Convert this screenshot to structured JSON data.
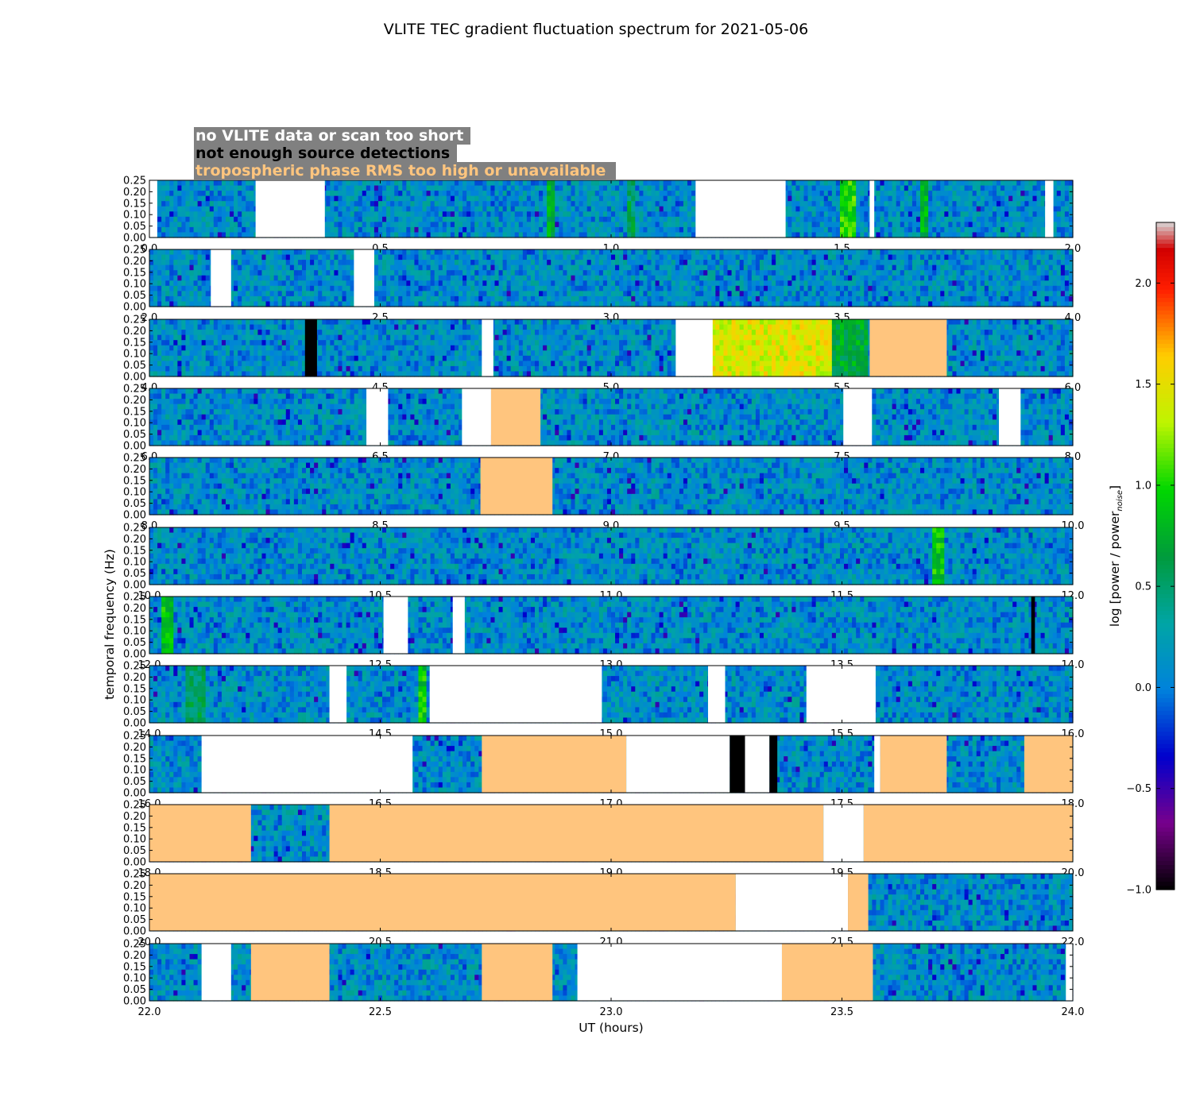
{
  "chart_data": {
    "type": "heatmap",
    "title": "VLITE TEC gradient fluctuation spectrum for 2021-05-06",
    "xlabel": "UT (hours)",
    "ylabel": "temporal frequency (Hz)",
    "ylim": [
      0,
      0.25
    ],
    "y_ticks": [
      "0.00",
      "0.05",
      "0.10",
      "0.15",
      "0.20",
      "0.25"
    ],
    "colorbar": {
      "label": "log [power / power",
      "label_sub": "noise",
      "label_end": "]",
      "range": [
        -1.0,
        2.3
      ],
      "ticks": [
        "−1.0",
        "−0.5",
        "0.0",
        "0.5",
        "1.0",
        "1.5",
        "2.0"
      ],
      "tick_values": [
        -1.0,
        -0.5,
        0.0,
        0.5,
        1.0,
        1.5,
        2.0
      ]
    },
    "legend": [
      {
        "text": "no VLITE data or scan too short",
        "color": "#ffffff",
        "fill": "#ffffff"
      },
      {
        "text": "not enough source detections",
        "color": "#000000",
        "fill": "#000000"
      },
      {
        "text": "tropospheric phase RMS too high or unavailable",
        "color": "#ffc57e",
        "fill": "#ffc57e"
      }
    ],
    "legend_bg": "#808080",
    "panels": [
      {
        "xlim": [
          0,
          2
        ],
        "xticks": [
          "0.0",
          "0.5",
          "1.0",
          "1.5",
          "2.0"
        ],
        "gaps": [
          {
            "t0": 0.0,
            "t1": 0.017,
            "kind": "nodata"
          },
          {
            "t0": 0.23,
            "t1": 0.38,
            "kind": "nodata"
          },
          {
            "t0": 1.183,
            "t1": 1.378,
            "kind": "nodata"
          },
          {
            "t0": 1.56,
            "t1": 1.57,
            "kind": "nodata"
          },
          {
            "t0": 1.94,
            "t1": 1.958,
            "kind": "nodata"
          }
        ],
        "hot": [
          {
            "t0": 0.86,
            "t1": 0.88,
            "level": 0.75
          },
          {
            "t0": 1.035,
            "t1": 1.05,
            "level": 0.55
          },
          {
            "t0": 1.5,
            "t1": 1.53,
            "level": 1.0
          },
          {
            "t0": 1.67,
            "t1": 1.69,
            "level": 0.8
          }
        ]
      },
      {
        "xlim": [
          2,
          4
        ],
        "xticks": [
          "2.0",
          "2.5",
          "3.0",
          "3.5",
          "4.0"
        ],
        "gaps": [
          {
            "t0": 2.133,
            "t1": 2.177,
            "kind": "nodata"
          },
          {
            "t0": 2.443,
            "t1": 2.487,
            "kind": "nodata"
          }
        ],
        "hot": []
      },
      {
        "xlim": [
          4,
          6
        ],
        "xticks": [
          "4.0",
          "4.5",
          "5.0",
          "5.5",
          "6.0"
        ],
        "gaps": [
          {
            "t0": 4.337,
            "t1": 4.363,
            "kind": "nodetect"
          },
          {
            "t0": 4.72,
            "t1": 4.745,
            "kind": "nodata"
          },
          {
            "t0": 5.14,
            "t1": 5.22,
            "kind": "nodata"
          },
          {
            "t0": 5.56,
            "t1": 5.727,
            "kind": "troposphere"
          }
        ],
        "hot": [
          {
            "t0": 5.22,
            "t1": 5.48,
            "level": 1.45
          },
          {
            "t0": 5.48,
            "t1": 5.56,
            "level": 0.7
          }
        ]
      },
      {
        "xlim": [
          6,
          8
        ],
        "xticks": [
          "6.0",
          "6.5",
          "7.0",
          "7.5",
          "8.0"
        ],
        "gaps": [
          {
            "t0": 6.47,
            "t1": 6.517,
            "kind": "nodata"
          },
          {
            "t0": 6.677,
            "t1": 6.74,
            "kind": "nodata"
          },
          {
            "t0": 6.74,
            "t1": 6.847,
            "kind": "troposphere"
          },
          {
            "t0": 7.503,
            "t1": 7.565,
            "kind": "nodata"
          },
          {
            "t0": 7.84,
            "t1": 7.887,
            "kind": "nodata"
          }
        ],
        "hot": []
      },
      {
        "xlim": [
          8,
          10
        ],
        "xticks": [
          "8.0",
          "8.5",
          "9.0",
          "9.5",
          "10.0"
        ],
        "gaps": [
          {
            "t0": 8.717,
            "t1": 8.873,
            "kind": "troposphere"
          }
        ],
        "hot": []
      },
      {
        "xlim": [
          10,
          12
        ],
        "xticks": [
          "10.0",
          "10.5",
          "11.0",
          "11.5",
          "12.0"
        ],
        "gaps": [],
        "hot": [
          {
            "t0": 11.7,
            "t1": 11.72,
            "level": 0.9
          }
        ]
      },
      {
        "xlim": [
          12,
          14
        ],
        "xticks": [
          "12.0",
          "12.5",
          "13.0",
          "13.5",
          "14.0"
        ],
        "gaps": [
          {
            "t0": 12.507,
            "t1": 12.56,
            "kind": "nodata"
          },
          {
            "t0": 12.657,
            "t1": 12.683,
            "kind": "nodata"
          },
          {
            "t0": 13.91,
            "t1": 13.918,
            "kind": "nodetect"
          }
        ],
        "hot": [
          {
            "t0": 12.03,
            "t1": 12.05,
            "level": 0.9
          }
        ]
      },
      {
        "xlim": [
          14,
          16
        ],
        "xticks": [
          "14.0",
          "14.5",
          "15.0",
          "15.5",
          "16.0"
        ],
        "gaps": [
          {
            "t0": 14.39,
            "t1": 14.427,
            "kind": "nodata"
          },
          {
            "t0": 14.607,
            "t1": 14.98,
            "kind": "nodata"
          },
          {
            "t0": 15.21,
            "t1": 15.247,
            "kind": "nodata"
          },
          {
            "t0": 15.423,
            "t1": 15.573,
            "kind": "nodata"
          }
        ],
        "hot": [
          {
            "t0": 14.08,
            "t1": 14.12,
            "level": 0.55
          },
          {
            "t0": 14.58,
            "t1": 14.6,
            "level": 0.9
          }
        ]
      },
      {
        "xlim": [
          16,
          18
        ],
        "xticks": [
          "16.0",
          "16.5",
          "17.0",
          "17.5",
          "18.0"
        ],
        "gaps": [
          {
            "t0": 16.113,
            "t1": 16.57,
            "kind": "nodata"
          },
          {
            "t0": 16.72,
            "t1": 17.033,
            "kind": "troposphere"
          },
          {
            "t0": 17.033,
            "t1": 17.257,
            "kind": "nodata"
          },
          {
            "t0": 17.257,
            "t1": 17.29,
            "kind": "nodetect"
          },
          {
            "t0": 17.29,
            "t1": 17.343,
            "kind": "nodata"
          },
          {
            "t0": 17.343,
            "t1": 17.36,
            "kind": "nodetect"
          },
          {
            "t0": 17.57,
            "t1": 17.583,
            "kind": "nodata"
          },
          {
            "t0": 17.583,
            "t1": 17.727,
            "kind": "troposphere"
          },
          {
            "t0": 17.895,
            "t1": 18.0,
            "kind": "troposphere"
          }
        ],
        "hot": []
      },
      {
        "xlim": [
          18,
          20
        ],
        "xticks": [
          "18.0",
          "18.5",
          "19.0",
          "19.5",
          "20.0"
        ],
        "gaps": [
          {
            "t0": 18.0,
            "t1": 18.22,
            "kind": "troposphere"
          },
          {
            "t0": 18.39,
            "t1": 19.46,
            "kind": "troposphere"
          },
          {
            "t0": 19.46,
            "t1": 19.547,
            "kind": "nodata"
          },
          {
            "t0": 19.547,
            "t1": 20.0,
            "kind": "troposphere"
          }
        ],
        "hot": []
      },
      {
        "xlim": [
          20,
          22
        ],
        "xticks": [
          "20.0",
          "20.5",
          "21.0",
          "21.5",
          "22.0"
        ],
        "gaps": [
          {
            "t0": 20.0,
            "t1": 21.27,
            "kind": "troposphere"
          },
          {
            "t0": 21.27,
            "t1": 21.513,
            "kind": "nodata"
          },
          {
            "t0": 21.513,
            "t1": 21.557,
            "kind": "troposphere"
          }
        ],
        "hot": []
      },
      {
        "xlim": [
          22,
          24
        ],
        "xticks": [
          "22.0",
          "22.5",
          "23.0",
          "23.5",
          "24.0"
        ],
        "gaps": [
          {
            "t0": 22.113,
            "t1": 22.177,
            "kind": "nodata"
          },
          {
            "t0": 22.22,
            "t1": 22.39,
            "kind": "troposphere"
          },
          {
            "t0": 22.72,
            "t1": 22.873,
            "kind": "troposphere"
          },
          {
            "t0": 22.927,
            "t1": 23.37,
            "kind": "nodata"
          },
          {
            "t0": 23.37,
            "t1": 23.567,
            "kind": "troposphere"
          },
          {
            "t0": 23.985,
            "t1": 24.0,
            "kind": "nodata"
          }
        ],
        "hot": []
      }
    ]
  },
  "colors": {
    "nodata": "#ffffff",
    "nodetect": "#000000",
    "troposphere": "#ffc57e",
    "legend_box": "#808080"
  }
}
